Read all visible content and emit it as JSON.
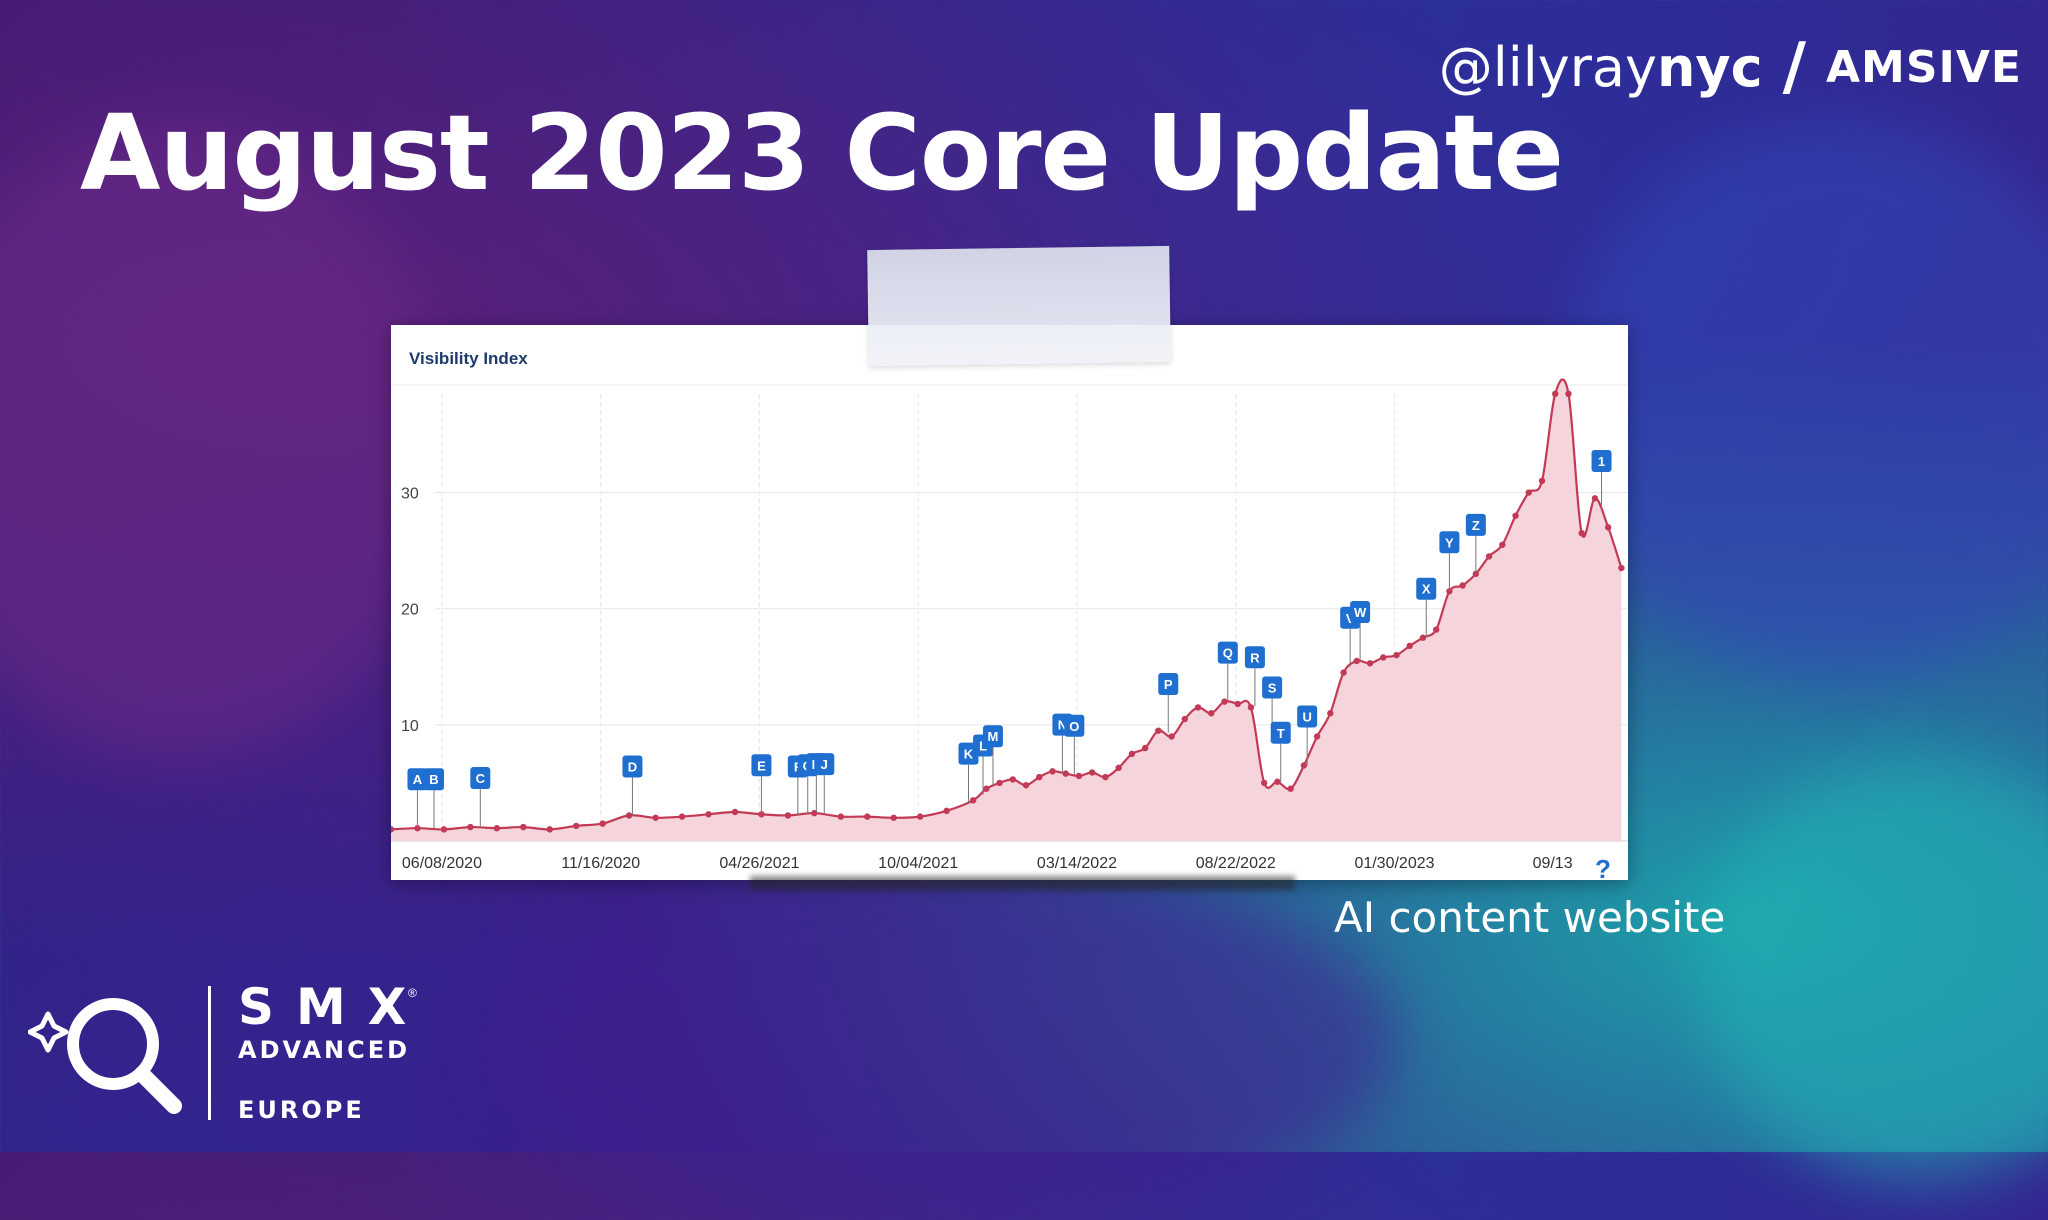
{
  "slide": {
    "title": "August 2023 Core Update",
    "handle_prefix": "@lily",
    "handle_mid": "ray",
    "handle_suffix": "nyc",
    "separator": "/",
    "brand": "AMSIVE",
    "caption": "AI content website"
  },
  "event": {
    "wordmark": "SMX",
    "registered": "®",
    "sub": "ADVANCED",
    "region": "EUROPE"
  },
  "chart_data": {
    "type": "area",
    "title": "Visibility Index",
    "xlabel": "",
    "ylabel": "",
    "ylim": [
      0,
      39
    ],
    "yticks": [
      10,
      20,
      30
    ],
    "grid": true,
    "x_tick_labels": [
      "06/08/2020",
      "11/16/2020",
      "04/26/2021",
      "10/04/2021",
      "03/14/2022",
      "08/22/2022",
      "01/30/2023",
      "09/13"
    ],
    "x_tick_positions_weeks": [
      7.7,
      31.7,
      55.7,
      79.7,
      103.7,
      127.7,
      151.7,
      175.6
    ],
    "series": [
      {
        "name": "",
        "color": "#c23a55",
        "fill": "#f5d4db",
        "points_weeks_vs_value": [
          [
            0,
            1.0
          ],
          [
            4,
            1.1
          ],
          [
            8,
            1.0
          ],
          [
            12,
            1.2
          ],
          [
            16,
            1.1
          ],
          [
            20,
            1.2
          ],
          [
            24,
            1.0
          ],
          [
            28,
            1.3
          ],
          [
            32,
            1.5
          ],
          [
            36,
            2.2
          ],
          [
            40,
            2.0
          ],
          [
            44,
            2.1
          ],
          [
            48,
            2.3
          ],
          [
            52,
            2.5
          ],
          [
            56,
            2.3
          ],
          [
            60,
            2.2
          ],
          [
            64,
            2.4
          ],
          [
            68,
            2.1
          ],
          [
            72,
            2.1
          ],
          [
            76,
            2.0
          ],
          [
            80,
            2.1
          ],
          [
            84,
            2.6
          ],
          [
            88,
            3.5
          ],
          [
            90,
            4.5
          ],
          [
            92,
            5.0
          ],
          [
            94,
            5.3
          ],
          [
            96,
            4.8
          ],
          [
            98,
            5.5
          ],
          [
            100,
            6.0
          ],
          [
            102,
            5.8
          ],
          [
            104,
            5.6
          ],
          [
            106,
            5.9
          ],
          [
            108,
            5.5
          ],
          [
            110,
            6.3
          ],
          [
            112,
            7.5
          ],
          [
            114,
            8.0
          ],
          [
            116,
            9.5
          ],
          [
            118,
            9.0
          ],
          [
            120,
            10.5
          ],
          [
            122,
            11.5
          ],
          [
            124,
            11.0
          ],
          [
            126,
            12.0
          ],
          [
            128,
            11.8
          ],
          [
            130,
            11.5
          ],
          [
            132,
            5.0
          ],
          [
            134,
            5.1
          ],
          [
            136,
            4.5
          ],
          [
            138,
            6.5
          ],
          [
            140,
            9.0
          ],
          [
            142,
            11.0
          ],
          [
            144,
            14.5
          ],
          [
            146,
            15.5
          ],
          [
            148,
            15.3
          ],
          [
            150,
            15.8
          ],
          [
            152,
            16.0
          ],
          [
            154,
            16.8
          ],
          [
            156,
            17.5
          ],
          [
            158,
            18.2
          ],
          [
            160,
            21.5
          ],
          [
            162,
            22.0
          ],
          [
            164,
            23.0
          ],
          [
            166,
            24.5
          ],
          [
            168,
            25.5
          ],
          [
            170,
            28.0
          ],
          [
            172,
            30.0
          ],
          [
            174,
            31.0
          ],
          [
            176,
            38.5
          ],
          [
            178,
            38.5
          ],
          [
            180,
            26.5
          ],
          [
            182,
            29.5
          ],
          [
            184,
            27.0
          ],
          [
            186,
            23.5
          ]
        ]
      }
    ],
    "annotations": [
      {
        "label": "A",
        "week": 4.0,
        "value": 1.1
      },
      {
        "label": "B",
        "week": 6.5,
        "value": 1.1
      },
      {
        "label": "C",
        "week": 13.5,
        "value": 1.2
      },
      {
        "label": "D",
        "week": 36.5,
        "value": 2.2
      },
      {
        "label": "E",
        "week": 56.0,
        "value": 2.3
      },
      {
        "label": "F",
        "week": 61.5,
        "value": 2.2
      },
      {
        "label": "G",
        "week": 63.0,
        "value": 2.3
      },
      {
        "label": "H",
        "week": 64.3,
        "value": 2.4
      },
      {
        "label": "J",
        "week": 65.5,
        "value": 2.4
      },
      {
        "label": "K",
        "week": 87.3,
        "value": 3.3
      },
      {
        "label": "L",
        "week": 89.5,
        "value": 4.0
      },
      {
        "label": "M",
        "week": 91.0,
        "value": 4.8
      },
      {
        "label": "N",
        "week": 101.5,
        "value": 5.8
      },
      {
        "label": "O",
        "week": 103.3,
        "value": 5.7
      },
      {
        "label": "P",
        "week": 117.5,
        "value": 9.3
      },
      {
        "label": "Q",
        "week": 126.5,
        "value": 12.0
      },
      {
        "label": "R",
        "week": 130.6,
        "value": 11.6
      },
      {
        "label": "S",
        "week": 133.2,
        "value": 9.0
      },
      {
        "label": "T",
        "week": 134.5,
        "value": 5.1
      },
      {
        "label": "U",
        "week": 138.5,
        "value": 6.5
      },
      {
        "label": "V",
        "week": 145.0,
        "value": 15.0
      },
      {
        "label": "W",
        "week": 146.5,
        "value": 15.5
      },
      {
        "label": "X",
        "week": 156.5,
        "value": 17.5
      },
      {
        "label": "Y",
        "week": 160.0,
        "value": 21.5
      },
      {
        "label": "Z",
        "week": 164.0,
        "value": 23.0
      },
      {
        "label": "1",
        "week": 183.0,
        "value": 28.5
      }
    ],
    "help_glyph": "?"
  }
}
